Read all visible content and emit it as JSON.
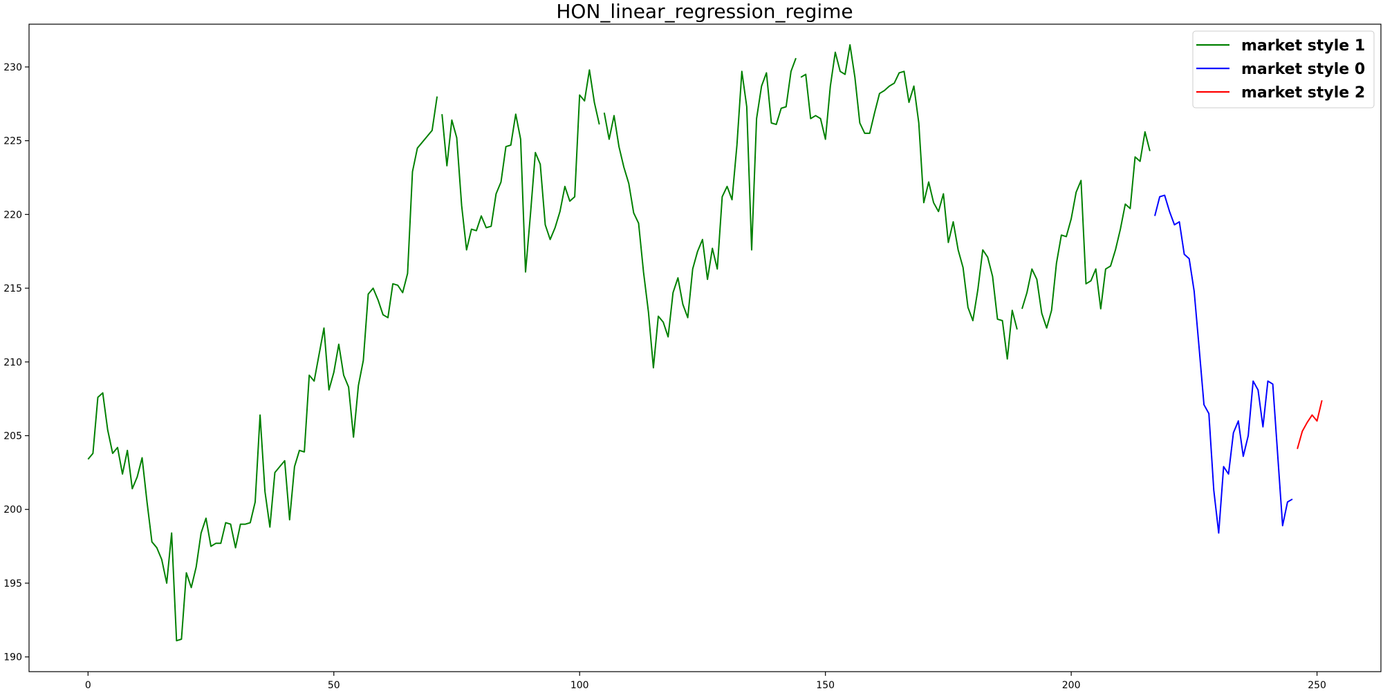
{
  "chart_data": {
    "type": "line",
    "title": "HON_linear_regression_regime",
    "xlabel": "",
    "ylabel": "",
    "xlim": [
      -12,
      263
    ],
    "ylim": [
      189.0,
      232.9
    ],
    "xticks": [
      0,
      50,
      100,
      150,
      200,
      250
    ],
    "yticks": [
      190,
      195,
      200,
      205,
      210,
      215,
      220,
      225,
      230
    ],
    "grid": false,
    "legend_position": "top-right",
    "legend": [
      {
        "label": "market style 1",
        "color": "#008000"
      },
      {
        "label": "market style 0",
        "color": "#0000ff"
      },
      {
        "label": "market style 2",
        "color": "#ff0000"
      }
    ],
    "series": [
      {
        "name": "market style 1",
        "color": "#008000",
        "segments": [
          [
            [
              0,
              203.4
            ],
            [
              1,
              203.8
            ],
            [
              2,
              207.6
            ],
            [
              3,
              207.9
            ],
            [
              4,
              205.4
            ],
            [
              5,
              203.8
            ],
            [
              6,
              204.2
            ],
            [
              7,
              202.4
            ],
            [
              8,
              204.0
            ],
            [
              9,
              201.4
            ],
            [
              10,
              202.2
            ],
            [
              11,
              203.5
            ],
            [
              12,
              200.5
            ],
            [
              13,
              197.8
            ],
            [
              14,
              197.4
            ],
            [
              15,
              196.6
            ],
            [
              16,
              195.0
            ],
            [
              17,
              198.4
            ],
            [
              18,
              191.1
            ],
            [
              19,
              191.2
            ],
            [
              20,
              195.7
            ],
            [
              21,
              194.7
            ],
            [
              22,
              196.1
            ],
            [
              23,
              198.4
            ],
            [
              24,
              199.4
            ],
            [
              25,
              197.5
            ],
            [
              26,
              197.7
            ],
            [
              27,
              197.7
            ],
            [
              28,
              199.1
            ],
            [
              29,
              199.0
            ],
            [
              30,
              197.4
            ],
            [
              31,
              199.0
            ],
            [
              32,
              199.0
            ],
            [
              33,
              199.1
            ],
            [
              34,
              200.5
            ],
            [
              35,
              206.4
            ],
            [
              36,
              201.2
            ],
            [
              37,
              198.8
            ],
            [
              38,
              202.5
            ],
            [
              39,
              202.9
            ],
            [
              40,
              203.3
            ],
            [
              41,
              199.3
            ],
            [
              42,
              202.9
            ],
            [
              43,
              204.0
            ],
            [
              44,
              203.9
            ],
            [
              45,
              209.1
            ],
            [
              46,
              208.7
            ],
            [
              47,
              210.5
            ],
            [
              48,
              212.3
            ],
            [
              49,
              208.1
            ],
            [
              50,
              209.3
            ],
            [
              51,
              211.2
            ],
            [
              52,
              209.1
            ],
            [
              53,
              208.3
            ],
            [
              54,
              204.9
            ],
            [
              55,
              208.4
            ],
            [
              56,
              210.1
            ],
            [
              57,
              214.6
            ],
            [
              58,
              215.0
            ],
            [
              59,
              214.2
            ],
            [
              60,
              213.2
            ],
            [
              61,
              213.0
            ],
            [
              62,
              215.3
            ],
            [
              63,
              215.2
            ],
            [
              64,
              214.7
            ],
            [
              65,
              216.0
            ],
            [
              66,
              222.9
            ],
            [
              67,
              224.5
            ],
            [
              68,
              224.9
            ],
            [
              69,
              225.3
            ],
            [
              70,
              225.7
            ],
            [
              71,
              228.0
            ]
          ],
          [
            [
              72,
              226.8
            ],
            [
              73,
              223.3
            ],
            [
              74,
              226.4
            ],
            [
              75,
              225.2
            ],
            [
              76,
              220.6
            ],
            [
              77,
              217.6
            ],
            [
              78,
              219.0
            ],
            [
              79,
              218.9
            ],
            [
              80,
              219.9
            ],
            [
              81,
              219.1
            ],
            [
              82,
              219.2
            ],
            [
              83,
              221.4
            ],
            [
              84,
              222.2
            ],
            [
              85,
              224.6
            ],
            [
              86,
              224.7
            ],
            [
              87,
              226.8
            ],
            [
              88,
              225.1
            ],
            [
              89,
              216.1
            ],
            [
              90,
              220.0
            ],
            [
              91,
              224.2
            ],
            [
              92,
              223.4
            ],
            [
              93,
              219.3
            ],
            [
              94,
              218.3
            ],
            [
              95,
              219.1
            ],
            [
              96,
              220.2
            ],
            [
              97,
              221.9
            ],
            [
              98,
              220.9
            ],
            [
              99,
              221.2
            ],
            [
              100,
              228.1
            ],
            [
              101,
              227.7
            ],
            [
              102,
              229.8
            ],
            [
              103,
              227.6
            ],
            [
              104,
              226.1
            ]
          ],
          [
            [
              105,
              226.9
            ],
            [
              106,
              225.1
            ],
            [
              107,
              226.7
            ],
            [
              108,
              224.6
            ],
            [
              109,
              223.2
            ],
            [
              110,
              222.1
            ],
            [
              111,
              220.1
            ],
            [
              112,
              219.4
            ],
            [
              113,
              216.1
            ],
            [
              114,
              213.4
            ],
            [
              115,
              209.6
            ],
            [
              116,
              213.1
            ],
            [
              117,
              212.7
            ],
            [
              118,
              211.7
            ],
            [
              119,
              214.7
            ],
            [
              120,
              215.7
            ],
            [
              121,
              213.9
            ],
            [
              122,
              213.0
            ],
            [
              123,
              216.3
            ],
            [
              124,
              217.5
            ],
            [
              125,
              218.3
            ],
            [
              126,
              215.6
            ],
            [
              127,
              217.7
            ],
            [
              128,
              216.3
            ],
            [
              129,
              221.2
            ],
            [
              130,
              221.9
            ],
            [
              131,
              221.0
            ],
            [
              132,
              224.7
            ],
            [
              133,
              229.7
            ],
            [
              134,
              227.3
            ],
            [
              135,
              217.6
            ],
            [
              136,
              226.5
            ],
            [
              137,
              228.7
            ],
            [
              138,
              229.6
            ],
            [
              139,
              226.2
            ],
            [
              140,
              226.1
            ],
            [
              141,
              227.2
            ],
            [
              142,
              227.3
            ],
            [
              143,
              229.7
            ],
            [
              144,
              230.6
            ]
          ],
          [
            [
              145,
              229.3
            ],
            [
              146,
              229.5
            ],
            [
              147,
              226.5
            ],
            [
              148,
              226.7
            ],
            [
              149,
              226.5
            ],
            [
              150,
              225.1
            ],
            [
              151,
              228.7
            ],
            [
              152,
              231.0
            ],
            [
              153,
              229.7
            ],
            [
              154,
              229.5
            ],
            [
              155,
              231.5
            ],
            [
              156,
              229.3
            ],
            [
              157,
              226.2
            ],
            [
              158,
              225.5
            ],
            [
              159,
              225.5
            ],
            [
              160,
              226.9
            ],
            [
              161,
              228.2
            ],
            [
              162,
              228.4
            ],
            [
              163,
              228.7
            ],
            [
              164,
              228.9
            ],
            [
              165,
              229.6
            ],
            [
              166,
              229.7
            ],
            [
              167,
              227.6
            ],
            [
              168,
              228.7
            ],
            [
              169,
              226.2
            ],
            [
              170,
              220.8
            ],
            [
              171,
              222.2
            ],
            [
              172,
              220.8
            ],
            [
              173,
              220.2
            ],
            [
              174,
              221.4
            ],
            [
              175,
              218.1
            ],
            [
              176,
              219.5
            ],
            [
              177,
              217.6
            ],
            [
              178,
              216.4
            ],
            [
              179,
              213.7
            ],
            [
              180,
              212.8
            ],
            [
              181,
              214.9
            ],
            [
              182,
              217.6
            ],
            [
              183,
              217.1
            ],
            [
              184,
              215.8
            ],
            [
              185,
              212.9
            ],
            [
              186,
              212.8
            ],
            [
              187,
              210.2
            ],
            [
              188,
              213.5
            ],
            [
              189,
              212.2
            ]
          ],
          [
            [
              190,
              213.6
            ],
            [
              191,
              214.7
            ],
            [
              192,
              216.3
            ],
            [
              193,
              215.6
            ],
            [
              194,
              213.3
            ],
            [
              195,
              212.3
            ],
            [
              196,
              213.5
            ],
            [
              197,
              216.7
            ],
            [
              198,
              218.6
            ],
            [
              199,
              218.5
            ],
            [
              200,
              219.7
            ],
            [
              201,
              221.5
            ],
            [
              202,
              222.3
            ],
            [
              203,
              215.3
            ],
            [
              204,
              215.5
            ],
            [
              205,
              216.3
            ],
            [
              206,
              213.6
            ],
            [
              207,
              216.3
            ],
            [
              208,
              216.5
            ],
            [
              209,
              217.6
            ],
            [
              210,
              219.0
            ],
            [
              211,
              220.7
            ],
            [
              212,
              220.4
            ],
            [
              213,
              223.9
            ],
            [
              214,
              223.6
            ],
            [
              215,
              225.6
            ],
            [
              216,
              224.3
            ]
          ]
        ]
      },
      {
        "name": "market style 0",
        "color": "#0000ff",
        "segments": [
          [
            [
              217,
              219.9
            ],
            [
              218,
              221.2
            ],
            [
              219,
              221.3
            ],
            [
              220,
              220.2
            ],
            [
              221,
              219.3
            ],
            [
              222,
              219.5
            ],
            [
              223,
              217.3
            ],
            [
              224,
              217.0
            ],
            [
              225,
              214.8
            ],
            [
              226,
              211.0
            ],
            [
              227,
              207.1
            ],
            [
              228,
              206.5
            ],
            [
              229,
              201.3
            ],
            [
              230,
              198.4
            ],
            [
              231,
              202.9
            ],
            [
              232,
              202.4
            ],
            [
              233,
              205.2
            ],
            [
              234,
              206.0
            ],
            [
              235,
              203.6
            ],
            [
              236,
              205.0
            ],
            [
              237,
              208.7
            ],
            [
              238,
              208.1
            ],
            [
              239,
              205.6
            ],
            [
              240,
              208.7
            ],
            [
              241,
              208.5
            ],
            [
              242,
              203.7
            ],
            [
              243,
              198.9
            ],
            [
              244,
              200.5
            ],
            [
              245,
              200.7
            ]
          ]
        ]
      },
      {
        "name": "market style 2",
        "color": "#ff0000",
        "segments": [
          [
            [
              246,
              204.1
            ],
            [
              247,
              205.3
            ],
            [
              248,
              205.9
            ],
            [
              249,
              206.4
            ],
            [
              250,
              206.0
            ],
            [
              251,
              207.4
            ]
          ]
        ]
      }
    ]
  }
}
